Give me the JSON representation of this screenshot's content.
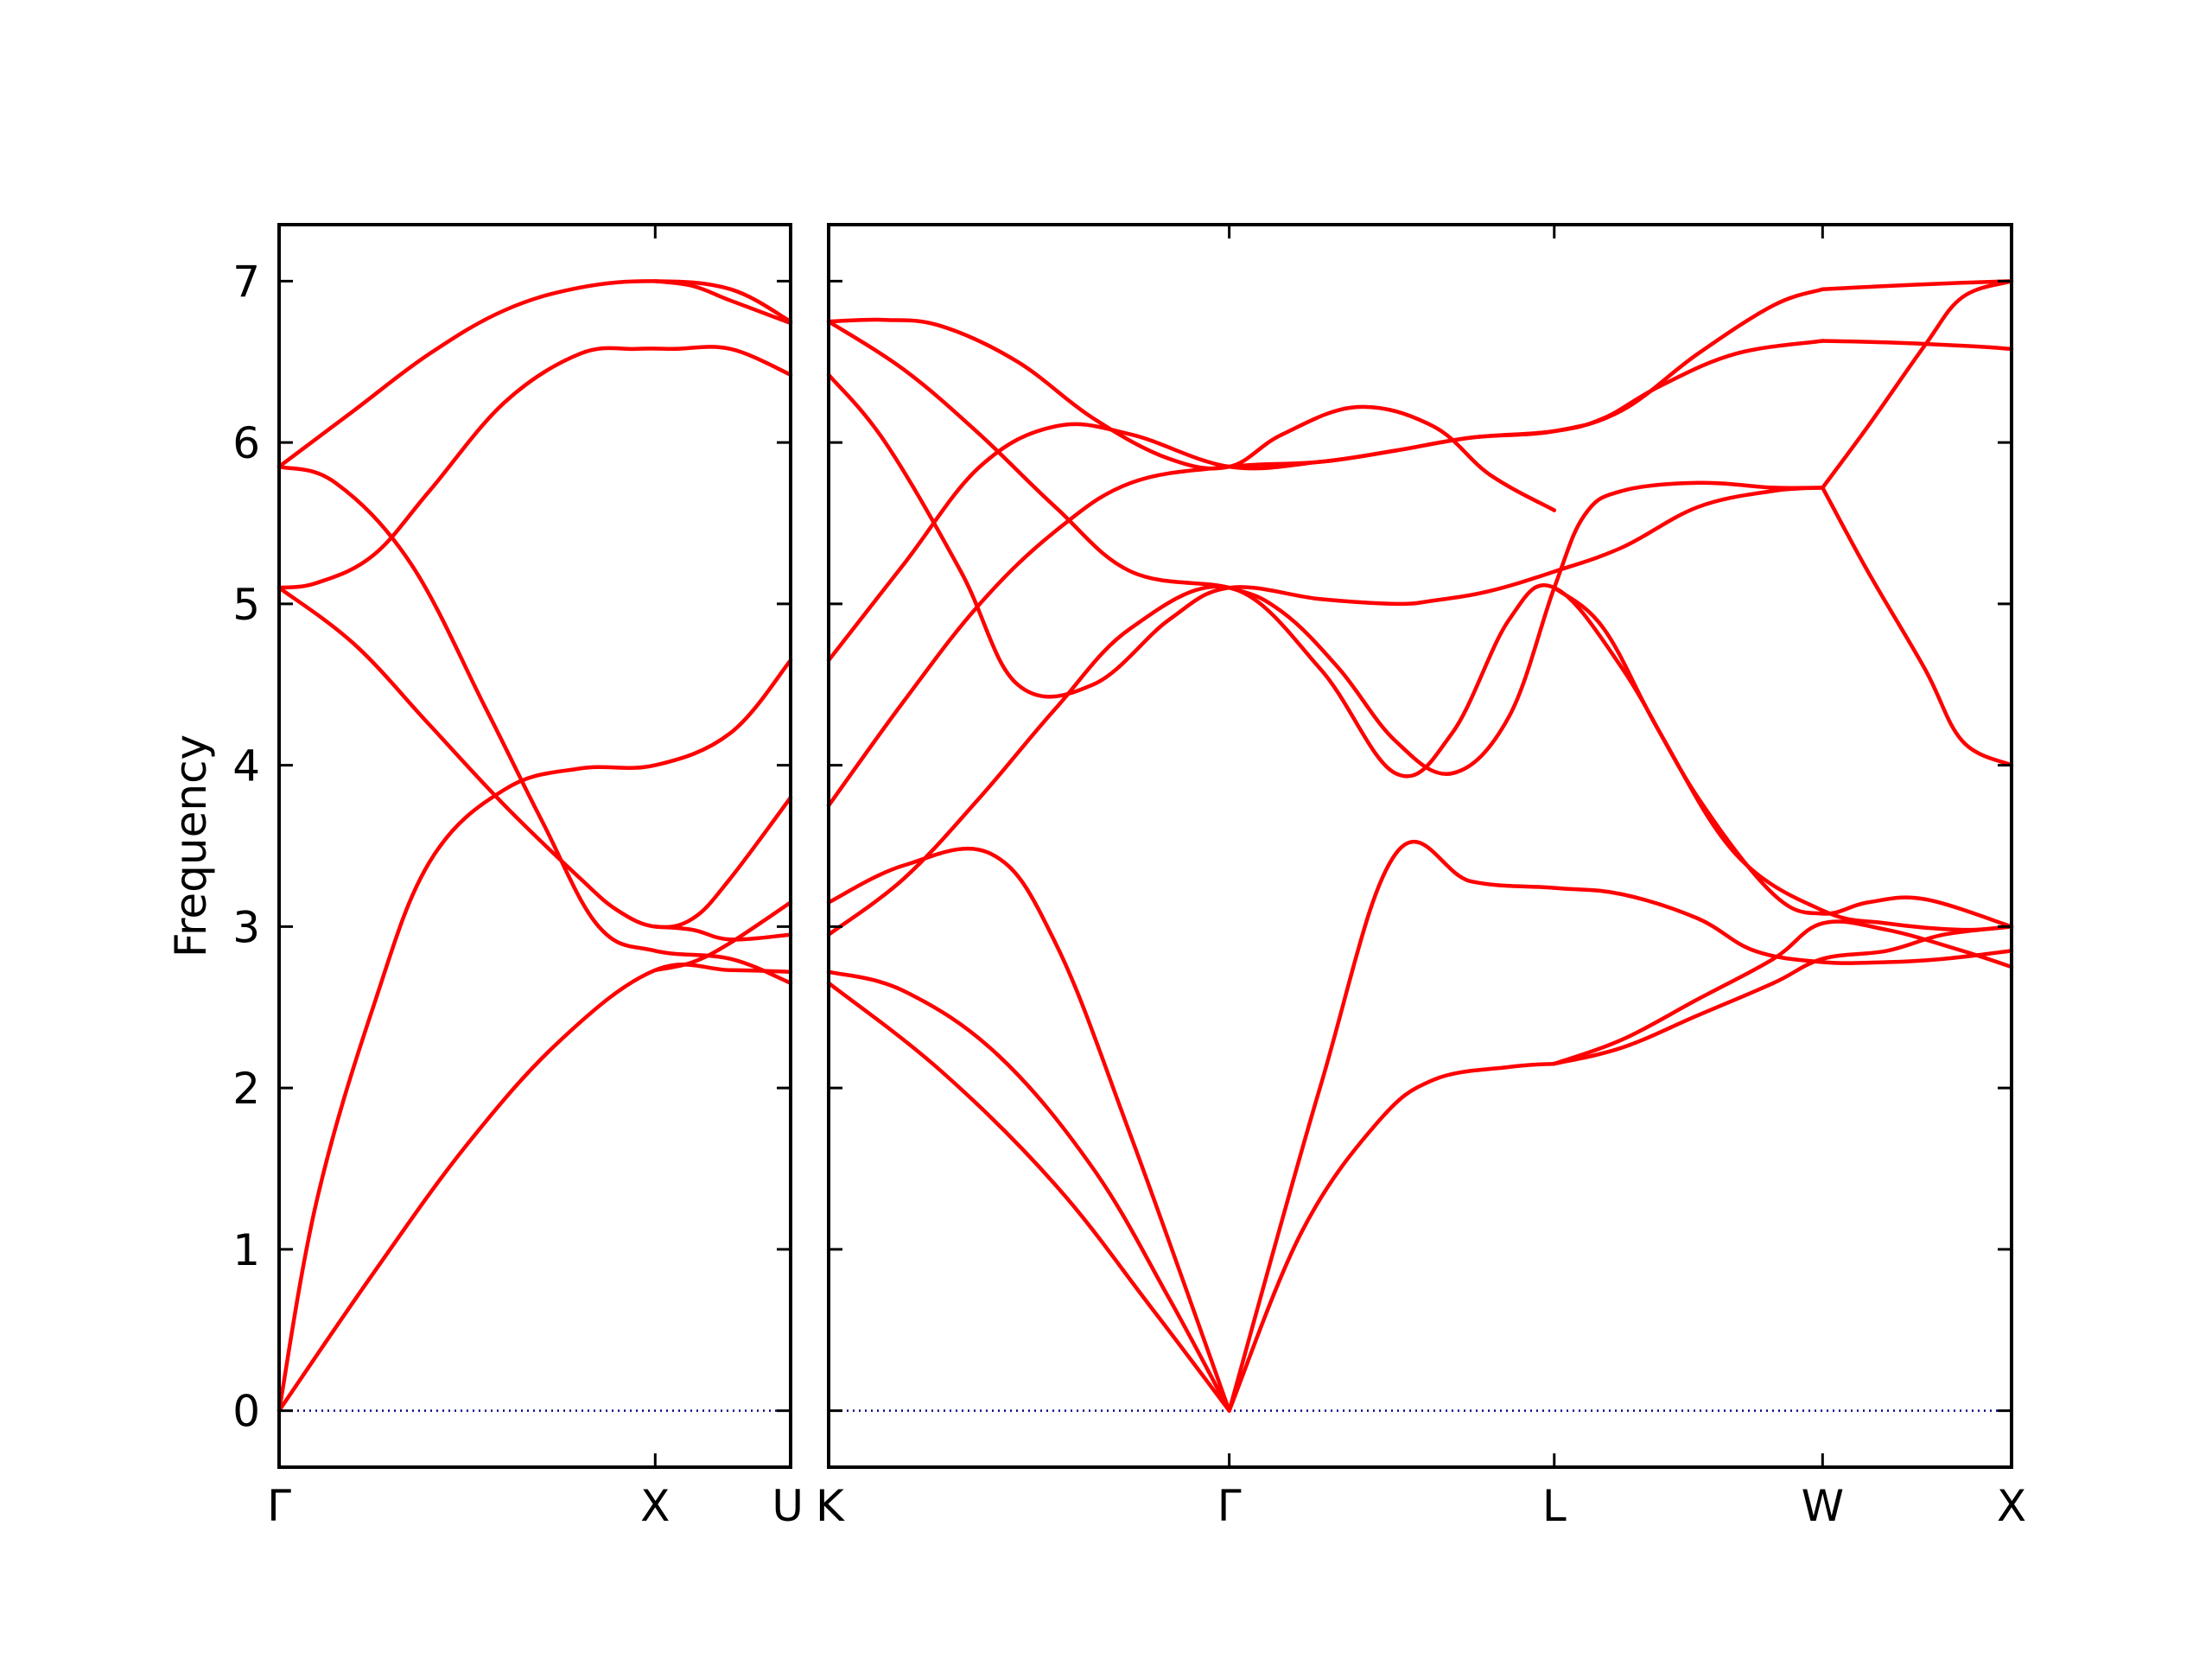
{
  "chart_data": {
    "type": "line",
    "ylabel": "Frequency",
    "ylim": [
      -0.35,
      7.35
    ],
    "yticks": [
      "0",
      "1",
      "2",
      "3",
      "4",
      "5",
      "6",
      "7"
    ],
    "colors": {
      "bands": "#ff0000",
      "zero_line": "#00008b",
      "axes": "#000000"
    },
    "grid": false,
    "panels": [
      {
        "path_labels": [
          "Γ",
          "X",
          "U"
        ],
        "label_positions": [
          0,
          1,
          1.36
        ],
        "xlim": [
          0,
          1.36
        ],
        "bands": [
          {
            "x": [
              0,
              0.25,
              0.5,
              0.75,
              1.0,
              1.2,
              1.36
            ],
            "y": [
              0,
              0.85,
              1.65,
              2.3,
              2.73,
              2.73,
              2.72
            ]
          },
          {
            "x": [
              0,
              0.1,
              0.25,
              0.4,
              0.6,
              0.8,
              1.0,
              1.2,
              1.36
            ],
            "y": [
              0,
              1.3,
              2.5,
              3.4,
              3.85,
              3.98,
              4.0,
              4.2,
              4.65
            ]
          },
          {
            "x": [
              0,
              0.2,
              0.4,
              0.6,
              0.8,
              0.9,
              1.0,
              1.1,
              1.2,
              1.36
            ],
            "y": [
              5.1,
              4.75,
              4.25,
              3.75,
              3.3,
              3.1,
              3.0,
              3.05,
              3.3,
              3.8
            ]
          },
          {
            "x": [
              0,
              0.15,
              0.35,
              0.55,
              0.7,
              0.85,
              1.0,
              1.2,
              1.36
            ],
            "y": [
              5.85,
              5.75,
              5.25,
              4.35,
              3.65,
              3.0,
              2.85,
              2.8,
              2.65
            ]
          },
          {
            "x": [
              0,
              0.1,
              0.25,
              0.4,
              0.6,
              0.8,
              0.95,
              1.05,
              1.2,
              1.36
            ],
            "y": [
              5.1,
              5.13,
              5.3,
              5.7,
              6.25,
              6.55,
              6.58,
              6.58,
              6.58,
              6.42
            ]
          },
          {
            "x": [
              0,
              0.2,
              0.4,
              0.6,
              0.8,
              1.0,
              1.2,
              1.36
            ],
            "y": [
              5.85,
              6.2,
              6.55,
              6.82,
              6.96,
              7.0,
              6.95,
              6.75
            ]
          },
          {
            "x": [
              1.0,
              1.1,
              1.2,
              1.36
            ],
            "y": [
              7.0,
              6.97,
              6.88,
              6.74
            ]
          },
          {
            "x": [
              1.0,
              1.1,
              1.2,
              1.36
            ],
            "y": [
              2.73,
              2.78,
              2.9,
              3.15
            ]
          },
          {
            "x": [
              1.0,
              1.1,
              1.2,
              1.36
            ],
            "y": [
              3.0,
              2.98,
              2.92,
              2.95
            ]
          }
        ]
      },
      {
        "path_labels": [
          "K",
          "Γ",
          "L",
          "W",
          "X"
        ],
        "label_positions": [
          0,
          1.06,
          1.92,
          2.63,
          3.13
        ],
        "xlim": [
          0,
          3.13
        ],
        "bands": [
          {
            "x": [
              0,
              0.3,
              0.6,
              0.85,
              1.06
            ],
            "y": [
              2.65,
              2.1,
              1.4,
              0.65,
              0
            ]
          },
          {
            "x": [
              0,
              0.2,
              0.45,
              0.7,
              0.9,
              1.06
            ],
            "y": [
              2.72,
              2.6,
              2.2,
              1.5,
              0.7,
              0
            ]
          },
          {
            "x": [
              0,
              0.2,
              0.43,
              0.6,
              0.8,
              1.06
            ],
            "y": [
              3.15,
              3.38,
              3.45,
              2.9,
              1.7,
              0
            ]
          },
          {
            "x": [
              1.06,
              1.25,
              1.45,
              1.6,
              1.8,
              1.92
            ],
            "y": [
              0,
              1.1,
              1.78,
              2.05,
              2.13,
              2.15
            ]
          },
          {
            "x": [
              1.06,
              1.3,
              1.5,
              1.7,
              1.92,
              2.1,
              2.3,
              2.45,
              2.63,
              2.8,
              2.95,
              3.13
            ],
            "y": [
              0,
              2.0,
              3.45,
              3.28,
              3.24,
              3.2,
              3.05,
              2.85,
              2.78,
              2.78,
              2.8,
              2.85
            ]
          },
          {
            "x": [
              1.92,
              2.1,
              2.3,
              2.5,
              2.63,
              2.8,
              2.95,
              3.13
            ],
            "y": [
              2.15,
              2.25,
              2.45,
              2.65,
              2.8,
              2.85,
              2.95,
              3.0
            ]
          },
          {
            "x": [
              1.92,
              2.1,
              2.3,
              2.5,
              2.63,
              2.8,
              3.0,
              3.13
            ],
            "y": [
              2.15,
              2.3,
              2.55,
              2.8,
              3.02,
              2.98,
              2.85,
              2.75
            ]
          },
          {
            "x": [
              0,
              0.2,
              0.4,
              0.6,
              0.8,
              1.06,
              1.3,
              1.5,
              1.65,
              1.8,
              1.92,
              2.1,
              2.3,
              2.5,
              2.63,
              2.75,
              2.9,
              3.13
            ],
            "y": [
              2.95,
              3.3,
              3.8,
              4.35,
              4.85,
              5.1,
              4.6,
              3.95,
              4.2,
              4.9,
              5.1,
              4.6,
              3.8,
              3.2,
              3.08,
              3.15,
              3.17,
              3.0
            ]
          },
          {
            "x": [
              1.92,
              2.05,
              2.2,
              2.4,
              2.63,
              2.8,
              3.0,
              3.13
            ],
            "y": [
              5.1,
              4.85,
              4.2,
              3.45,
              3.1,
              3.02,
              2.98,
              3.0
            ]
          },
          {
            "x": [
              0,
              0.2,
              0.4,
              0.6,
              0.8,
              1.06,
              1.3,
              1.5,
              1.7,
              1.92,
              2.05,
              2.2,
              2.4,
              2.63
            ],
            "y": [
              3.75,
              4.4,
              5.0,
              5.45,
              5.75,
              5.85,
              5.88,
              5.95,
              6.03,
              6.07,
              6.15,
              6.35,
              6.55,
              6.63
            ]
          },
          {
            "x": [
              2.63,
              2.8,
              3.0,
              3.13
            ],
            "y": [
              6.63,
              6.62,
              6.6,
              6.58
            ]
          },
          {
            "x": [
              0,
              0.2,
              0.4,
              0.6,
              0.8,
              1.06,
              1.3,
              1.5,
              1.7,
              1.92,
              2.1,
              2.3,
              2.5,
              2.63
            ],
            "y": [
              4.65,
              5.25,
              5.85,
              6.1,
              6.05,
              5.85,
              5.88,
              5.95,
              6.03,
              6.07,
              6.2,
              6.55,
              6.85,
              6.95
            ]
          },
          {
            "x": [
              2.63,
              2.8,
              3.0,
              3.13
            ],
            "y": [
              6.95,
              6.97,
              6.99,
              7.0
            ]
          },
          {
            "x": [
              0,
              0.15,
              0.35,
              0.5,
              0.7,
              0.9,
              1.06,
              1.3,
              1.5,
              1.6,
              1.75,
              1.92,
              2.1,
              2.3,
              2.5,
              2.63
            ],
            "y": [
              6.42,
              6.0,
              5.2,
              4.5,
              4.5,
              4.9,
              5.1,
              5.03,
              5.0,
              5.02,
              5.08,
              5.2,
              5.35,
              5.6,
              5.7,
              5.72
            ]
          },
          {
            "x": [
              0,
              0.2,
              0.4,
              0.6,
              0.8,
              1.06,
              1.2,
              1.35,
              1.5,
              1.65,
              1.8,
              1.92,
              2.0,
              2.1,
              2.3,
              2.5,
              2.63
            ],
            "y": [
              6.75,
              6.45,
              6.05,
              5.6,
              5.2,
              5.1,
              4.95,
              4.6,
              4.15,
              3.95,
              4.3,
              5.1,
              5.55,
              5.7,
              5.75,
              5.72,
              5.72
            ]
          },
          {
            "x": [
              2.63,
              2.75,
              2.9,
              3.0,
              3.13
            ],
            "y": [
              5.72,
              5.2,
              4.6,
              4.15,
              4.0
            ]
          },
          {
            "x": [
              2.63,
              2.75,
              2.9,
              3.0,
              3.13
            ],
            "y": [
              5.72,
              6.1,
              6.6,
              6.9,
              7.0
            ]
          },
          {
            "x": [
              0,
              0.15,
              0.3,
              0.5,
              0.7,
              0.9,
              1.06,
              1.2,
              1.4,
              1.6,
              1.75,
              1.92
            ],
            "y": [
              6.75,
              6.76,
              6.72,
              6.5,
              6.15,
              5.9,
              5.85,
              6.05,
              6.22,
              6.1,
              5.8,
              5.58
            ]
          }
        ]
      }
    ]
  }
}
